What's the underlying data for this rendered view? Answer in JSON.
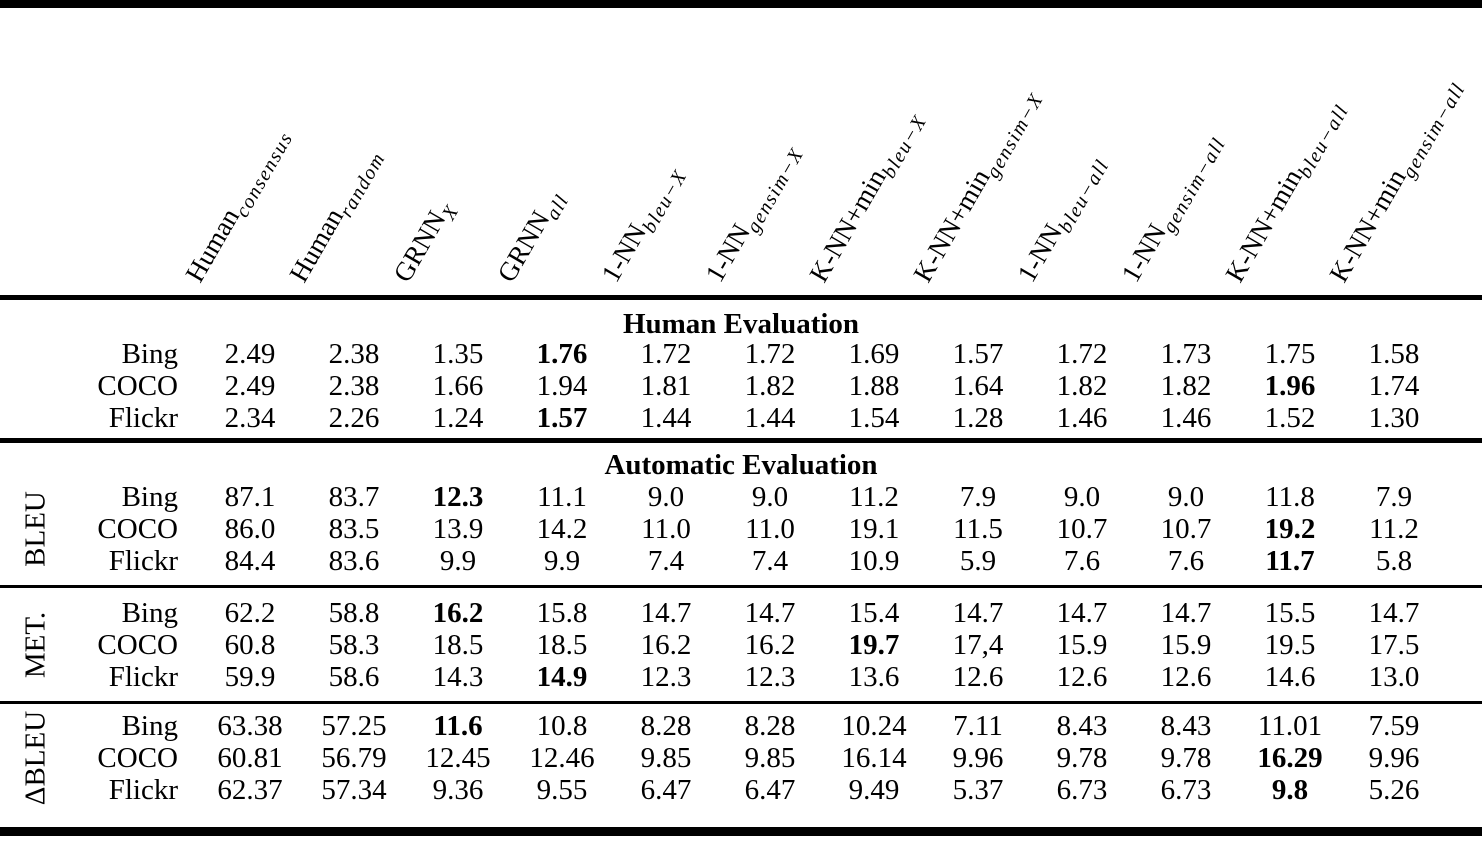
{
  "table": {
    "column_headers": [
      {
        "base": "Human",
        "sub": "consensus"
      },
      {
        "base": "Human",
        "sub": "random"
      },
      {
        "base": "GRNN",
        "sub": "X"
      },
      {
        "base": "GRNN",
        "sub": "all"
      },
      {
        "base": "1-NN",
        "sub": "bleu−X"
      },
      {
        "base": "1-NN",
        "sub": "gensim−X"
      },
      {
        "base": "K-NN+min",
        "sub": "bleu−X"
      },
      {
        "base": "K-NN+min",
        "sub": "gensim−X"
      },
      {
        "base": "1-NN",
        "sub": "bleu−all"
      },
      {
        "base": "1-NN",
        "sub": "gensim−all"
      },
      {
        "base": "K-NN+min",
        "sub": "bleu−all"
      },
      {
        "base": "K-NN+min",
        "sub": "gensim−all"
      }
    ],
    "sections": [
      {
        "title": "Human Evaluation",
        "groups": [
          {
            "label": "",
            "rows": [
              {
                "label": "Bing",
                "values": [
                  "2.49",
                  "2.38",
                  "1.35",
                  "1.76",
                  "1.72",
                  "1.72",
                  "1.69",
                  "1.57",
                  "1.72",
                  "1.73",
                  "1.75",
                  "1.58"
                ],
                "bold": [
                  3
                ]
              },
              {
                "label": "COCO",
                "values": [
                  "2.49",
                  "2.38",
                  "1.66",
                  "1.94",
                  "1.81",
                  "1.82",
                  "1.88",
                  "1.64",
                  "1.82",
                  "1.82",
                  "1.96",
                  "1.74"
                ],
                "bold": [
                  10
                ]
              },
              {
                "label": "Flickr",
                "values": [
                  "2.34",
                  "2.26",
                  "1.24",
                  "1.57",
                  "1.44",
                  "1.44",
                  "1.54",
                  "1.28",
                  "1.46",
                  "1.46",
                  "1.52",
                  "1.30"
                ],
                "bold": [
                  3
                ]
              }
            ]
          }
        ]
      },
      {
        "title": "Automatic Evaluation",
        "groups": [
          {
            "label": "BLEU",
            "rows": [
              {
                "label": "Bing",
                "values": [
                  "87.1",
                  "83.7",
                  "12.3",
                  "11.1",
                  "9.0",
                  "9.0",
                  "11.2",
                  "7.9",
                  "9.0",
                  "9.0",
                  "11.8",
                  "7.9"
                ],
                "bold": [
                  2
                ]
              },
              {
                "label": "COCO",
                "values": [
                  "86.0",
                  "83.5",
                  "13.9",
                  "14.2",
                  "11.0",
                  "11.0",
                  "19.1",
                  "11.5",
                  "10.7",
                  "10.7",
                  "19.2",
                  "11.2"
                ],
                "bold": [
                  10
                ]
              },
              {
                "label": "Flickr",
                "values": [
                  "84.4",
                  "83.6",
                  "9.9",
                  "9.9",
                  "7.4",
                  "7.4",
                  "10.9",
                  "5.9",
                  "7.6",
                  "7.6",
                  "11.7",
                  "5.8"
                ],
                "bold": [
                  10
                ]
              }
            ]
          },
          {
            "label": "MET.",
            "rows": [
              {
                "label": "Bing",
                "values": [
                  "62.2",
                  "58.8",
                  "16.2",
                  "15.8",
                  "14.7",
                  "14.7",
                  "15.4",
                  "14.7",
                  "14.7",
                  "14.7",
                  "15.5",
                  "14.7"
                ],
                "bold": [
                  2
                ]
              },
              {
                "label": "COCO",
                "values": [
                  "60.8",
                  "58.3",
                  "18.5",
                  "18.5",
                  "16.2",
                  "16.2",
                  "19.7",
                  "17,4",
                  "15.9",
                  "15.9",
                  "19.5",
                  "17.5"
                ],
                "bold": [
                  6
                ]
              },
              {
                "label": "Flickr",
                "values": [
                  "59.9",
                  "58.6",
                  "14.3",
                  "14.9",
                  "12.3",
                  "12.3",
                  "13.6",
                  "12.6",
                  "12.6",
                  "12.6",
                  "14.6",
                  "13.0"
                ],
                "bold": [
                  3
                ]
              }
            ]
          },
          {
            "label": "ΔBLEU",
            "rows": [
              {
                "label": "Bing",
                "values": [
                  "63.38",
                  "57.25",
                  "11.6",
                  "10.8",
                  "8.28",
                  "8.28",
                  "10.24",
                  "7.11",
                  "8.43",
                  "8.43",
                  "11.01",
                  "7.59"
                ],
                "bold": [
                  2
                ]
              },
              {
                "label": "COCO",
                "values": [
                  "60.81",
                  "56.79",
                  "12.45",
                  "12.46",
                  "9.85",
                  "9.85",
                  "16.14",
                  "9.96",
                  "9.78",
                  "9.78",
                  "16.29",
                  "9.96"
                ],
                "bold": [
                  10
                ]
              },
              {
                "label": "Flickr",
                "values": [
                  "62.37",
                  "57.34",
                  "9.36",
                  "9.55",
                  "6.47",
                  "6.47",
                  "9.49",
                  "5.37",
                  "6.73",
                  "6.73",
                  "9.8",
                  "5.26"
                ],
                "bold": [
                  10
                ]
              }
            ]
          }
        ]
      }
    ]
  }
}
